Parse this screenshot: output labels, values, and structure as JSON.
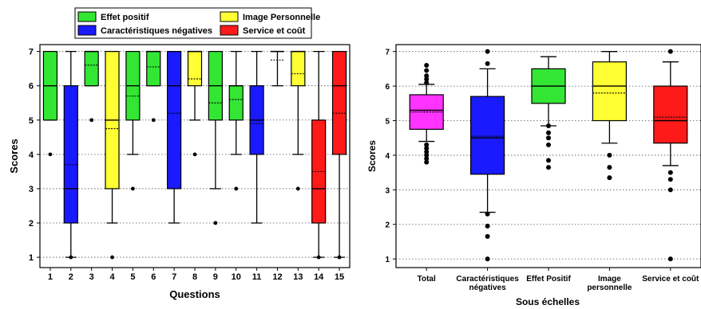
{
  "colors": {
    "effet_positif": "#33e633",
    "caracteristiques_negatives": "#1a1aff",
    "image_personnelle": "#ffff33",
    "service_cout": "#ff1a1a",
    "total": "#ff33ff"
  },
  "chart_data": [
    {
      "type": "boxplot",
      "xlabel": "Questions",
      "ylabel": "Scores",
      "ylim": [
        0.7,
        7.2
      ],
      "yticks": [
        1,
        2,
        3,
        4,
        5,
        6,
        7
      ],
      "grid": "horizontal dotted",
      "legend_position": "top",
      "legend": [
        {
          "label": "Effet positif",
          "color": "#33e633"
        },
        {
          "label": "Image Personnelle",
          "color": "#ffff33"
        },
        {
          "label": "Caractéristiques négatives",
          "color": "#1a1aff"
        },
        {
          "label": "Service et coût",
          "color": "#ff1a1a"
        }
      ],
      "categories": [
        "1",
        "2",
        "3",
        "4",
        "5",
        "6",
        "7",
        "8",
        "9",
        "10",
        "11",
        "12",
        "13",
        "14",
        "15"
      ],
      "boxes": [
        {
          "group": "effet_positif",
          "q1": 5,
          "median": 6,
          "q3": 7,
          "mean": 6.0,
          "whisker_low": 5,
          "whisker_high": 7,
          "outliers": [
            4
          ]
        },
        {
          "group": "caracteristiques_negatives",
          "q1": 2,
          "median": 3,
          "q3": 6,
          "mean": 3.7,
          "whisker_low": 1,
          "whisker_high": 7,
          "outliers": [
            1
          ]
        },
        {
          "group": "effet_positif",
          "q1": 6,
          "median": 7,
          "q3": 7,
          "mean": 6.6,
          "whisker_low": 6,
          "whisker_high": 7,
          "outliers": [
            5
          ]
        },
        {
          "group": "image_personnelle",
          "q1": 3,
          "median": 5,
          "q3": 7,
          "mean": 4.75,
          "whisker_low": 2,
          "whisker_high": 7,
          "outliers": [
            1
          ]
        },
        {
          "group": "effet_positif",
          "q1": 5,
          "median": 6,
          "q3": 7,
          "mean": 5.7,
          "whisker_low": 4,
          "whisker_high": 7,
          "outliers": [
            3
          ]
        },
        {
          "group": "effet_positif",
          "q1": 6,
          "median": 7,
          "q3": 7,
          "mean": 6.55,
          "whisker_low": 6,
          "whisker_high": 7,
          "outliers": [
            5
          ]
        },
        {
          "group": "caracteristiques_negatives",
          "q1": 3,
          "median": 6,
          "q3": 7,
          "mean": 5.2,
          "whisker_low": 2,
          "whisker_high": 7,
          "outliers": []
        },
        {
          "group": "image_personnelle",
          "q1": 6,
          "median": 7,
          "q3": 7,
          "mean": 6.2,
          "whisker_low": 5,
          "whisker_high": 7,
          "outliers": [
            4
          ]
        },
        {
          "group": "effet_positif",
          "q1": 5,
          "median": 6,
          "q3": 7,
          "mean": 5.5,
          "whisker_low": 3,
          "whisker_high": 7,
          "outliers": [
            2
          ]
        },
        {
          "group": "effet_positif",
          "q1": 5,
          "median": 6,
          "q3": 6,
          "mean": 5.6,
          "whisker_low": 4,
          "whisker_high": 7,
          "outliers": [
            3
          ]
        },
        {
          "group": "caracteristiques_negatives",
          "q1": 4,
          "median": 5,
          "q3": 6,
          "mean": 4.9,
          "whisker_low": 2,
          "whisker_high": 7,
          "outliers": []
        },
        {
          "group": "effet_positif",
          "q1": 7,
          "median": 7,
          "q3": 7,
          "mean": 6.75,
          "whisker_low": 6,
          "whisker_high": 7,
          "outliers": []
        },
        {
          "group": "image_personnelle",
          "q1": 6,
          "median": 7,
          "q3": 7,
          "mean": 6.35,
          "whisker_low": 4,
          "whisker_high": 7,
          "outliers": [
            3
          ]
        },
        {
          "group": "service_cout",
          "q1": 2,
          "median": 3,
          "q3": 5,
          "mean": 3.5,
          "whisker_low": 1,
          "whisker_high": 7,
          "outliers": [
            1
          ]
        },
        {
          "group": "service_cout",
          "q1": 4,
          "median": 6,
          "q3": 7,
          "mean": 5.2,
          "whisker_low": 1,
          "whisker_high": 7,
          "outliers": [
            1
          ]
        }
      ]
    },
    {
      "type": "boxplot",
      "xlabel": "Sous échelles",
      "ylabel": "Scores",
      "ylim": [
        0.75,
        7.2
      ],
      "yticks": [
        1,
        2,
        3,
        4,
        5,
        6,
        7
      ],
      "grid": "horizontal dotted",
      "categories": [
        [
          "Total"
        ],
        [
          "Caractéristiques",
          "négatives"
        ],
        [
          "Effet Positif"
        ],
        [
          "Image",
          "personnelle"
        ],
        [
          "Service et coût"
        ]
      ],
      "boxes": [
        {
          "group": "total",
          "q1": 4.75,
          "median": 5.3,
          "q3": 5.75,
          "mean": 5.25,
          "whisker_low": 4.4,
          "whisker_high": 6.05,
          "outliers": [
            3.8,
            3.9,
            4.0,
            4.1,
            4.2,
            4.3,
            6.1,
            6.2,
            6.3,
            6.45,
            6.6
          ]
        },
        {
          "group": "caracteristiques_negatives",
          "q1": 3.45,
          "median": 4.5,
          "q3": 5.7,
          "mean": 4.55,
          "whisker_low": 2.35,
          "whisker_high": 6.5,
          "outliers": [
            1.0,
            1.65,
            1.95,
            2.3,
            6.65,
            7.0
          ]
        },
        {
          "group": "effet_positif",
          "q1": 5.5,
          "median": 6.0,
          "q3": 6.5,
          "mean": 6.0,
          "whisker_low": 4.85,
          "whisker_high": 6.85,
          "outliers": [
            3.65,
            3.85,
            4.3,
            4.5,
            4.65,
            4.85
          ]
        },
        {
          "group": "image_personnelle",
          "q1": 5.0,
          "median": 6.0,
          "q3": 6.7,
          "mean": 5.8,
          "whisker_low": 4.35,
          "whisker_high": 7.0,
          "outliers": [
            3.35,
            3.65,
            4.0
          ]
        },
        {
          "group": "service_cout",
          "q1": 4.35,
          "median": 5.0,
          "q3": 6.0,
          "mean": 5.1,
          "whisker_low": 3.7,
          "whisker_high": 6.7,
          "outliers": [
            1.0,
            3.0,
            3.3,
            3.5,
            7.0
          ]
        }
      ]
    }
  ]
}
